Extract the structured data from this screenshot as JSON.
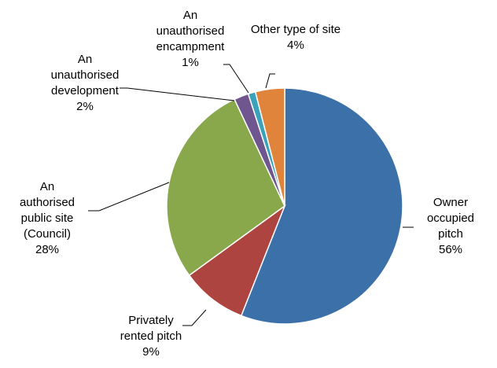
{
  "chart_data": {
    "type": "pie",
    "categories": [
      "Owner occupied pitch",
      "Privately rented pitch",
      "An authorised public site (Council)",
      "An unauthorised development",
      "An unauthorised encampment",
      "Other type of site"
    ],
    "values": [
      56,
      9,
      28,
      2,
      1,
      4
    ],
    "value_labels": [
      "56%",
      "9%",
      "28%",
      "2%",
      "1%",
      "4%"
    ],
    "colors": [
      "#3c70a8",
      "#ad4440",
      "#89a84c",
      "#6f568f",
      "#3aa2bb",
      "#e0843c"
    ]
  }
}
